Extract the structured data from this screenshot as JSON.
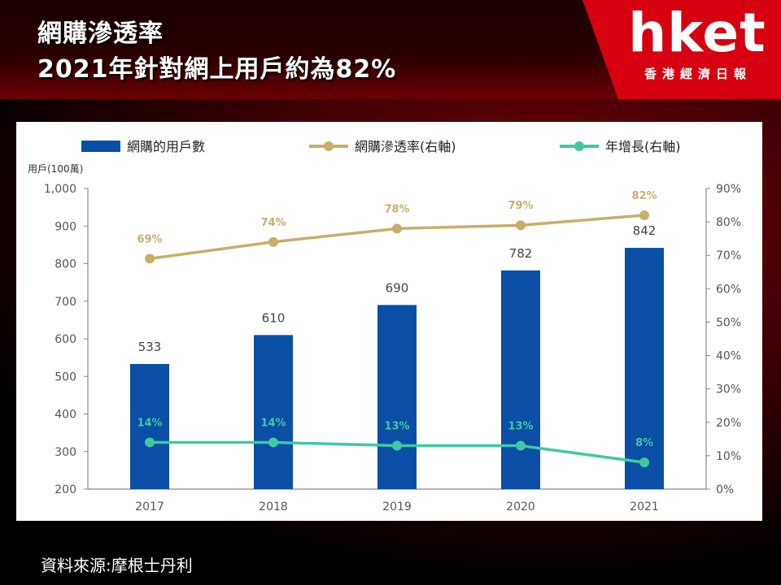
{
  "header": {
    "title_line1": "網購滲透率",
    "title_line2": "2021年針對網上用戶約為82%"
  },
  "logo": {
    "brand": "hket",
    "tagline": "香港經濟日報"
  },
  "footer": {
    "source": "資料來源:摩根士丹利"
  },
  "chart_data": {
    "type": "bar",
    "categories": [
      "2017",
      "2018",
      "2019",
      "2020",
      "2021"
    ],
    "left_axis": {
      "unit_label": "用戶(100萬)",
      "min": 200,
      "max": 1000,
      "ticks": [
        "1,000",
        "900",
        "800",
        "700",
        "600",
        "500",
        "400",
        "300",
        "200"
      ],
      "tick_values": [
        1000,
        900,
        800,
        700,
        600,
        500,
        400,
        300,
        200
      ]
    },
    "right_axis": {
      "min": 0,
      "max": 90,
      "ticks": [
        "90%",
        "80%",
        "70%",
        "60%",
        "50%",
        "40%",
        "30%",
        "20%",
        "10%",
        "0%"
      ],
      "tick_values": [
        90,
        80,
        70,
        60,
        50,
        40,
        30,
        20,
        10,
        0
      ]
    },
    "series": [
      {
        "name": "網購的用戶數",
        "kind": "bar",
        "axis": "left",
        "color": "#0a4ea6",
        "values": [
          533,
          610,
          690,
          782,
          842
        ],
        "labels": [
          "533",
          "610",
          "690",
          "782",
          "842"
        ]
      },
      {
        "name": "網購滲透率(右軸)",
        "kind": "line",
        "axis": "right",
        "color": "#c8ae6a",
        "values": [
          69,
          74,
          78,
          79,
          82
        ],
        "labels": [
          "69%",
          "74%",
          "78%",
          "79%",
          "82%"
        ]
      },
      {
        "name": "年增長(右軸)",
        "kind": "line",
        "axis": "right",
        "color": "#3ec9a2",
        "values": [
          14,
          14,
          13,
          13,
          8
        ],
        "labels": [
          "14%",
          "14%",
          "13%",
          "13%",
          "8%"
        ]
      }
    ],
    "legend_position": "top",
    "grid": false
  }
}
